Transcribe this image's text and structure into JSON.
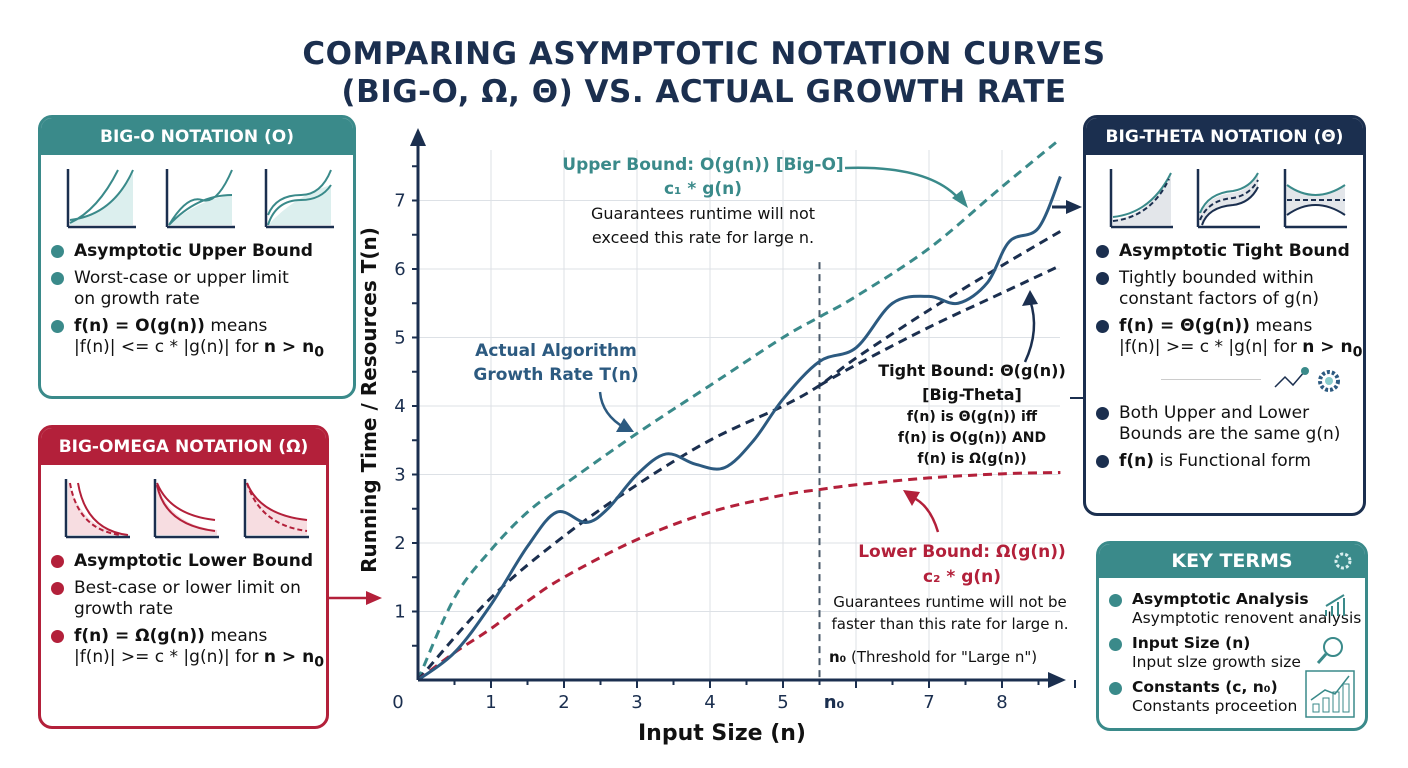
{
  "title": {
    "line1": "COMPARING ASYMPTOTIC NOTATION CURVES",
    "line2": "(BIG-O, Ω, Θ) VS. ACTUAL GROWTH RATE"
  },
  "colors": {
    "teal": "#3a8a8a",
    "red": "#b3203a",
    "navy": "#1b2f4f",
    "actual": "#2c5a80"
  },
  "big_o": {
    "header": "BIG-O NOTATION (O)",
    "b1": "Asymptotic Upper Bound",
    "b2": "Worst-case or upper limit on growth rate",
    "b3_bold": "f(n) = O(g(n))",
    "b3_rest": " means",
    "b3_line2a": "|f(n)| <= c * |g(n)| for ",
    "b3_line2b": "n > n",
    "sub0": "0"
  },
  "big_omega": {
    "header": "BIG-OMEGA NOTATION (Ω)",
    "b1": "Asymptotic Lower Bound",
    "b2": "Best-case or lower limit on growth rate",
    "b3_bold": "f(n) = Ω(g(n))",
    "b3_rest": " means",
    "b3_line2a": "|f(n)| >= c * |g(n)| for ",
    "b3_line2b": "n > n",
    "sub0": "0"
  },
  "big_theta": {
    "header": "BIG-THETA NOTATION (Θ)",
    "b1": "Asymptotic Tight Bound",
    "b2": "Tightly bounded within constant factors of g(n)",
    "b3_bold": "f(n) = Θ(g(n))",
    "b3_rest": " means",
    "b3_line2a": "|f(n)| >= c * |g(n| for ",
    "b3_line2b": "n > n",
    "sub0": "0",
    "b4": "Both Upper and Lower Bounds are the same g(n)",
    "b5_bold": "f(n)",
    "b5_rest": " is Functional form"
  },
  "key_terms": {
    "header": "KEY TERMS",
    "items": [
      {
        "term": "Asymptotic Analysis",
        "desc": "Asymptotic renovent analysis"
      },
      {
        "term": "Input Size (n)",
        "desc": "Input slze growth size"
      },
      {
        "term": "Constants (c, n₀)",
        "desc": "Constants proceetion"
      }
    ]
  },
  "chart_data": {
    "type": "line",
    "xlabel": "Input Size (n)",
    "ylabel": "Running Time / Resources T(n)",
    "xlim": [
      0,
      9
    ],
    "ylim": [
      0,
      7.9
    ],
    "x_ticks": [
      "0",
      "1",
      "2",
      "3",
      "4",
      "5",
      "n₀",
      "7",
      "8"
    ],
    "y_ticks": [
      "1",
      "2",
      "3",
      "4",
      "5",
      "6",
      "7"
    ],
    "grid": true,
    "threshold_n0": 5.5,
    "series": [
      {
        "key": "upper",
        "style": "dashed",
        "color": "#3a8a8a",
        "x": [
          0,
          0.5,
          1,
          1.5,
          2,
          3,
          4,
          5,
          5.5,
          6,
          7,
          8,
          8.8
        ],
        "y": [
          0,
          1.2,
          1.9,
          2.45,
          2.85,
          3.6,
          4.3,
          5.0,
          5.3,
          5.6,
          6.3,
          7.2,
          7.9
        ]
      },
      {
        "key": "tight_upper",
        "style": "dashed",
        "color": "#1b2f4f",
        "x": [
          0,
          1,
          2,
          3,
          4,
          5,
          5.5,
          6,
          7,
          8,
          8.8
        ],
        "y": [
          0,
          1.2,
          2.1,
          2.85,
          3.5,
          4.0,
          4.3,
          4.7,
          5.4,
          6.05,
          6.55
        ]
      },
      {
        "key": "tight_lower",
        "style": "dashed",
        "color": "#1b2f4f",
        "x": [
          5.5,
          6,
          7,
          8,
          8.8
        ],
        "y": [
          4.3,
          4.6,
          5.15,
          5.65,
          6.05
        ]
      },
      {
        "key": "lower",
        "style": "dashed",
        "color": "#b3203a",
        "x": [
          0,
          0.5,
          1,
          1.5,
          2,
          3,
          4,
          5,
          5.5,
          6,
          7,
          8,
          8.8
        ],
        "y": [
          0,
          0.4,
          0.75,
          1.15,
          1.5,
          2.05,
          2.45,
          2.7,
          2.78,
          2.85,
          2.95,
          3.01,
          3.03
        ]
      },
      {
        "key": "actual",
        "style": "solid",
        "color": "#2c5a80",
        "x": [
          0,
          0.5,
          1,
          1.5,
          1.9,
          2.3,
          2.6,
          3,
          3.4,
          3.8,
          4.2,
          4.6,
          5,
          5.5,
          6,
          6.5,
          7,
          7.4,
          7.8,
          8.1,
          8.5,
          8.8
        ],
        "y": [
          0,
          0.4,
          1.1,
          1.95,
          2.45,
          2.3,
          2.5,
          3.0,
          3.3,
          3.15,
          3.1,
          3.5,
          4.1,
          4.65,
          4.85,
          5.5,
          5.6,
          5.5,
          5.8,
          6.4,
          6.6,
          7.35
        ]
      }
    ],
    "annotations": {
      "upper_title": "Upper Bound: O(g(n)) [Big-O]",
      "upper_formula": "c₁ * g(n)",
      "upper_desc1": "Guarantees runtime will not",
      "upper_desc2": "exceed this rate for large n.",
      "actual1": "Actual Algorithm",
      "actual2": "Growth Rate T(n)",
      "tight1": "Tight Bound: Θ(g(n))",
      "tight2": "[Big-Theta]",
      "tight3": "f(n) is Θ(g(n)) iff",
      "tight4": "f(n) is O(g(n)) AND",
      "tight5": "f(n) is Ω(g(n))",
      "lower_title": "Lower Bound: Ω(g(n))",
      "lower_formula": "c₂ * g(n)",
      "lower_desc1": "Guarantees runtime will not be",
      "lower_desc2": "faster than this rate for large n.",
      "n0_bold": "n₀",
      "n0_rest": " (Threshold for \"Large n\")"
    }
  }
}
